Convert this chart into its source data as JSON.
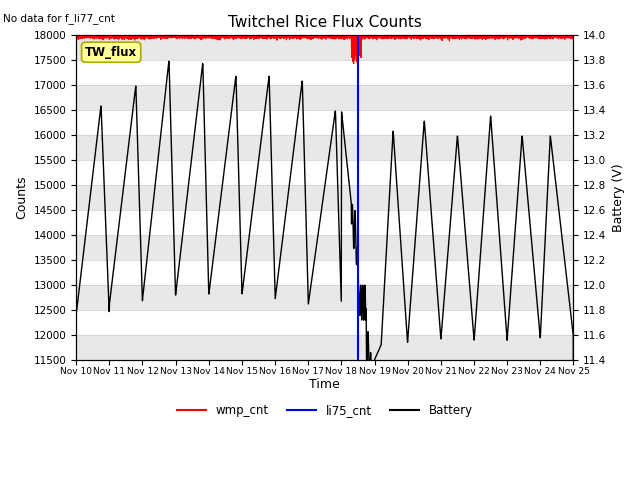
{
  "title": "Twitchel Rice Flux Counts",
  "no_data_text": "No data for f_li77_cnt",
  "xlabel": "Time",
  "ylabel_left": "Counts",
  "ylabel_right": "Battery (V)",
  "ylim_left": [
    11500,
    18000
  ],
  "ylim_right": [
    11.4,
    14.0
  ],
  "yticks_left": [
    11500,
    12000,
    12500,
    13000,
    13500,
    14000,
    14500,
    15000,
    15500,
    16000,
    16500,
    17000,
    17500,
    18000
  ],
  "yticks_right": [
    11.4,
    11.6,
    11.8,
    12.0,
    12.2,
    12.4,
    12.6,
    12.8,
    13.0,
    13.2,
    13.4,
    13.6,
    13.8,
    14.0
  ],
  "xlim": [
    0,
    15
  ],
  "xtick_labels": [
    "Nov 10",
    "Nov 11",
    "Nov 12",
    "Nov 13",
    "Nov 14",
    "Nov 15",
    "Nov 16",
    "Nov 17",
    "Nov 18",
    "Nov 19",
    "Nov 20",
    "Nov 21",
    "Nov 22",
    "Nov 23",
    "Nov 24",
    "Nov 25"
  ],
  "wmp_cnt_color": "#ff0000",
  "li75_cnt_color": "#0000ff",
  "battery_color": "#000000",
  "bg_color_light": "#e8e8e8",
  "bg_color_white": "#ffffff",
  "label_box_color": "#ffff99",
  "label_box_border": "#aaaa00",
  "label_box_text": "TW_flux",
  "vline_x": 8.5,
  "legend_items": [
    "wmp_cnt",
    "li75_cnt",
    "Battery"
  ],
  "legend_colors": [
    "#ff0000",
    "#0000ff",
    "#000000"
  ],
  "cycles_left": {
    "bases": [
      12400,
      12600,
      12700,
      12800,
      12800,
      12800,
      12700,
      12600
    ],
    "peaks": [
      16600,
      17000,
      17500,
      17450,
      17200,
      17200,
      17100,
      16500
    ],
    "rise_fracs": [
      0.75,
      0.8,
      0.8,
      0.82,
      0.82,
      0.82,
      0.82,
      0.82
    ]
  },
  "cycles_right": {
    "starts": [
      9.2,
      10.0,
      11.0,
      12.0,
      13.0,
      14.0
    ],
    "ends": [
      10.0,
      11.0,
      12.0,
      13.0,
      14.0,
      15.0
    ],
    "bases": [
      11800,
      11900,
      11900,
      11850,
      11900,
      11950
    ],
    "peaks": [
      16100,
      16300,
      16000,
      16400,
      16000,
      16000
    ],
    "rise_fracs": [
      0.45,
      0.5,
      0.5,
      0.5,
      0.45,
      0.3
    ]
  }
}
